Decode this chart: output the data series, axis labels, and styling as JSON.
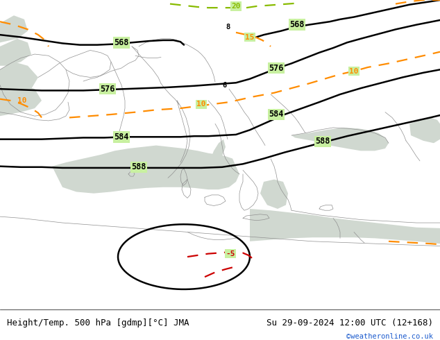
{
  "title_left": "Height/Temp. 500 hPa [gdmp][°C] JMA",
  "title_right": "Su 29-09-2024 12:00 UTC (12+168)",
  "credit": "©weatheronline.co.uk",
  "land_color": "#c8f0a0",
  "sea_color": "#d0d8d0",
  "bottom_bg": "#ffffff",
  "font_family": "monospace",
  "black": "#000000",
  "orange": "#ff8c00",
  "red": "#cc0000",
  "green": "#88bb00",
  "gray_border": "#909090"
}
